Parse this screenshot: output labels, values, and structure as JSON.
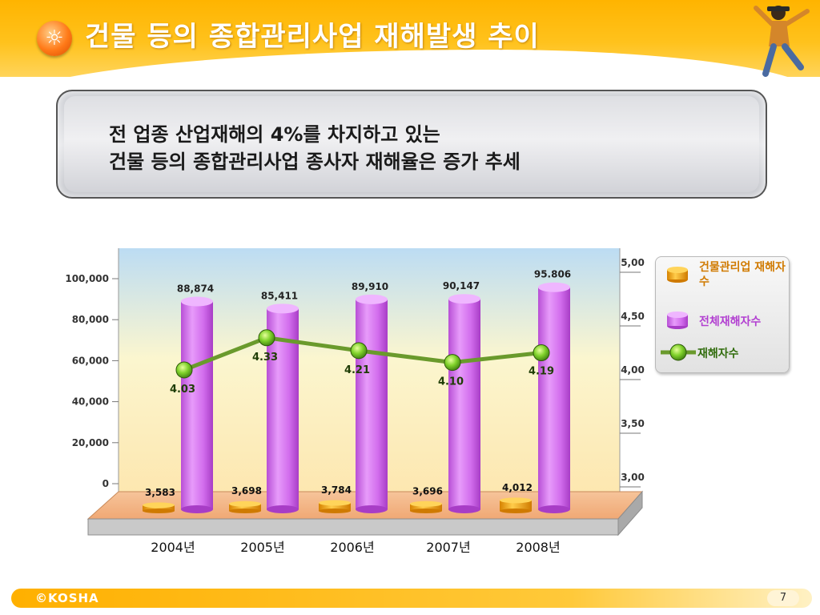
{
  "slide": {
    "title": "건물 등의 종합관리사업 재해발생 추이",
    "message_line1": "전 업종 산업재해의 4%를 차지하고 있는",
    "message_line2": "건물 등의 종합관리사업 종사자 재해율은  증가 추세",
    "footer_logo": "©KOSHA",
    "page_number": "7",
    "header_icon": "sun-icon"
  },
  "colors": {
    "header": "#ffb400",
    "bar_total": "#d96ef0",
    "bar_building": "#f3a418",
    "line_rate": "#6a9a2c",
    "marker": "#7fd12a",
    "legend_text_building": "#d07a00",
    "legend_text_total": "#b23fd1",
    "legend_text_rate": "#2f6b0a"
  },
  "chart_data": {
    "type": "bar",
    "categories": [
      "2004년",
      "2005년",
      "2006년",
      "2007년",
      "2008년"
    ],
    "series": [
      {
        "name": "건물관리업 재해자수",
        "kind": "bar",
        "axis": "left",
        "values": [
          3583,
          3698,
          3784,
          3696,
          4012
        ],
        "labels": [
          "3,583",
          "3,698",
          "3,784",
          "3,696",
          "4,012"
        ]
      },
      {
        "name": "전체재해자수",
        "kind": "bar",
        "axis": "left",
        "values": [
          88874,
          85411,
          89910,
          90147,
          95806
        ],
        "labels": [
          "88,874",
          "85,411",
          "89,910",
          "90,147",
          "95.806"
        ]
      },
      {
        "name": "재해자수",
        "kind": "line",
        "axis": "right",
        "values": [
          4.03,
          4.33,
          4.21,
          4.1,
          4.19
        ],
        "labels": [
          "4.03",
          "4.33",
          "4.21",
          "4.10",
          "4.19"
        ]
      }
    ],
    "y_left": {
      "ticks": [
        "0",
        "20,000",
        "40,000",
        "60,000",
        "80,000",
        "100,000"
      ]
    },
    "y_right": {
      "ticks": [
        "3,00",
        "3,50",
        "4,00",
        "4,50",
        "5,00"
      ]
    },
    "legend_position": "right",
    "legend": [
      "건물관리업 재해자수",
      "전체재해자수",
      "재해자수"
    ]
  }
}
